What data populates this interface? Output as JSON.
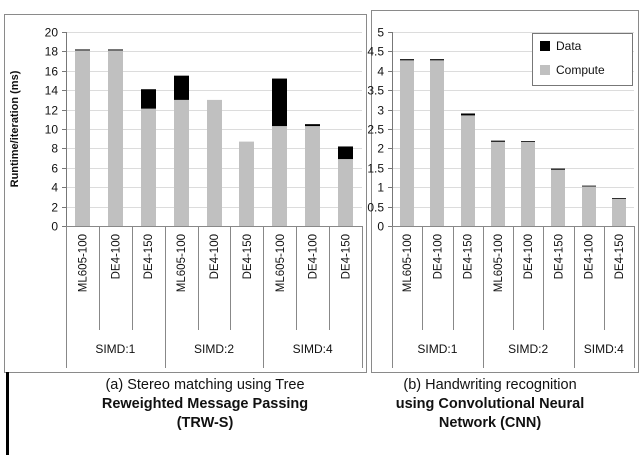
{
  "colors": {
    "data": "#000000",
    "compute": "#c0c0c0",
    "frame": "#8a8a8a"
  },
  "legend": {
    "data_label": "Data",
    "compute_label": "Compute",
    "placement": "top-right of chart b"
  },
  "captions": {
    "a": {
      "line1": "(a) Stereo matching using Tree",
      "line2": "Reweighted Message Passing",
      "line3": "(TRW-S)"
    },
    "b": {
      "line1": "(b) Handwriting recognition",
      "line2": "using Convolutional Neural",
      "line3": "Network (CNN)"
    }
  },
  "chart_data": [
    {
      "type": "bar",
      "stacked": true,
      "title": "",
      "xlabel": "",
      "ylabel": "Runtime/iteration (ms)",
      "ylim": [
        0,
        20
      ],
      "yticks": [
        0,
        2,
        4,
        6,
        8,
        10,
        12,
        14,
        16,
        18,
        20
      ],
      "grid": true,
      "categories": [
        "ML605-100",
        "DE4-100",
        "DE4-150",
        "ML605-100",
        "DE4-100",
        "DE4-150",
        "ML605-100",
        "DE4-100",
        "DE4-150"
      ],
      "groups": [
        {
          "label": "SIMD:1",
          "count": 3
        },
        {
          "label": "SIMD:2",
          "count": 3
        },
        {
          "label": "SIMD:4",
          "count": 3
        }
      ],
      "series": [
        {
          "name": "Compute",
          "values": [
            18.1,
            18.1,
            12.1,
            13.0,
            13.0,
            8.7,
            10.3,
            10.3,
            6.9
          ]
        },
        {
          "name": "Data",
          "values": [
            0.1,
            0.1,
            2.0,
            2.5,
            0.0,
            0.0,
            4.9,
            0.2,
            1.3
          ]
        }
      ]
    },
    {
      "type": "bar",
      "stacked": true,
      "title": "",
      "xlabel": "",
      "ylabel": "",
      "ylim": [
        0,
        5
      ],
      "yticks": [
        0,
        0.5,
        1,
        1.5,
        2,
        2.5,
        3,
        3.5,
        4,
        4.5,
        5
      ],
      "grid": true,
      "categories": [
        "ML605-100",
        "DE4-100",
        "DE4-150",
        "ML605-100",
        "DE4-100",
        "DE4-150",
        "DE4-100",
        "DE4-150"
      ],
      "groups": [
        {
          "label": "SIMD:1",
          "count": 3
        },
        {
          "label": "SIMD:2",
          "count": 3
        },
        {
          "label": "SIMD:4",
          "count": 2
        }
      ],
      "series": [
        {
          "name": "Compute",
          "values": [
            4.27,
            4.27,
            2.85,
            2.17,
            2.17,
            1.45,
            1.02,
            0.7
          ]
        },
        {
          "name": "Data",
          "values": [
            0.03,
            0.03,
            0.05,
            0.03,
            0.02,
            0.03,
            0.02,
            0.02
          ]
        }
      ]
    }
  ]
}
